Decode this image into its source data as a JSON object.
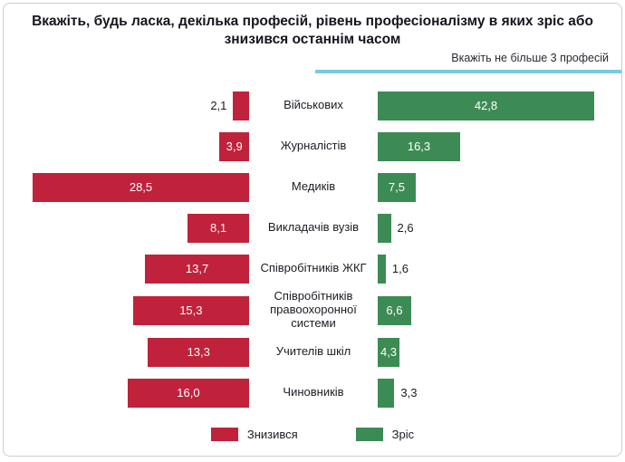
{
  "title": "Вкажіть, будь ласка,  декілька професій, рівень професіоналізму в яких зріс або знизився останнім часом",
  "subtitle": "Вкажіть не більше 3 професій",
  "colors": {
    "decline": "#c0223b",
    "growth": "#3d8b54",
    "accent_line": "#79c9e3"
  },
  "legend": [
    {
      "label": "Знизився",
      "color": "#c0223b"
    },
    {
      "label": "Зріс",
      "color": "#3d8b54"
    }
  ],
  "chart_data": {
    "type": "bar",
    "orientation": "diverging-horizontal",
    "title": "Вкажіть, будь ласка, декілька професій, рівень професіоналізму в яких зріс або знизився останнім часом",
    "subtitle": "Вкажіть не більше 3 професій",
    "categories": [
      "Військових",
      "Журналістів",
      "Медиків",
      "Викладачів вузів",
      "Співробітників ЖКГ",
      "Співробітників правоохоронної системи",
      "Учителів шкіл",
      "Чиновників"
    ],
    "series": [
      {
        "name": "Знизився",
        "values": [
          2.1,
          3.9,
          28.5,
          8.1,
          13.7,
          15.3,
          13.3,
          16.0
        ]
      },
      {
        "name": "Зріс",
        "values": [
          42.8,
          16.3,
          7.5,
          2.6,
          1.6,
          6.6,
          4.3,
          3.3
        ]
      }
    ],
    "value_labels": {
      "decline": [
        "2,1",
        "3,9",
        "28,5",
        "8,1",
        "13,7",
        "15,3",
        "13,3",
        "16,0"
      ],
      "growth": [
        "42,8",
        "16,3",
        "7,5",
        "2,6",
        "1,6",
        "6,6",
        "4,3",
        "3,3"
      ]
    },
    "legend_position": "bottom",
    "grid": false
  }
}
